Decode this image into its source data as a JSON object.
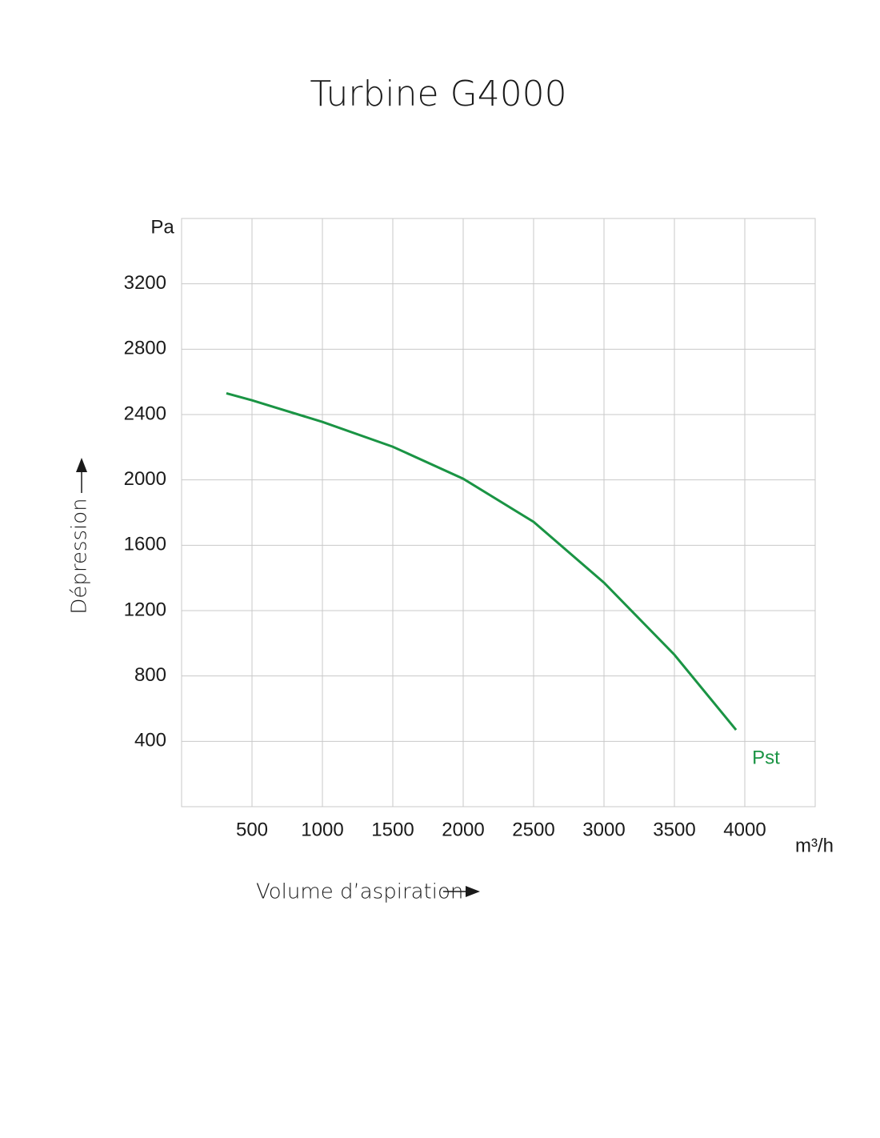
{
  "chart_data": {
    "type": "line",
    "title": "Turbine G4000",
    "x_label": "Volume d’aspiration",
    "y_label": "Dépression",
    "y_unit": "Pa",
    "x_unit": "m³/h",
    "xlim": [
      0,
      4500
    ],
    "xticks": [
      500,
      1000,
      1500,
      2000,
      2500,
      3000,
      3500,
      4000
    ],
    "ylim": [
      0,
      3600
    ],
    "yticks": [
      400,
      800,
      1200,
      1600,
      2000,
      2400,
      2800,
      3200
    ],
    "grid": true,
    "x": [
      318,
      500,
      1000,
      1500,
      2000,
      2500,
      3000,
      3500,
      3938
    ],
    "series": [
      {
        "name": "Pst",
        "color": "#1a9444",
        "values": [
          2530,
          2487,
          2355,
          2203,
          2007,
          1743,
          1371,
          930,
          470
        ]
      }
    ]
  }
}
